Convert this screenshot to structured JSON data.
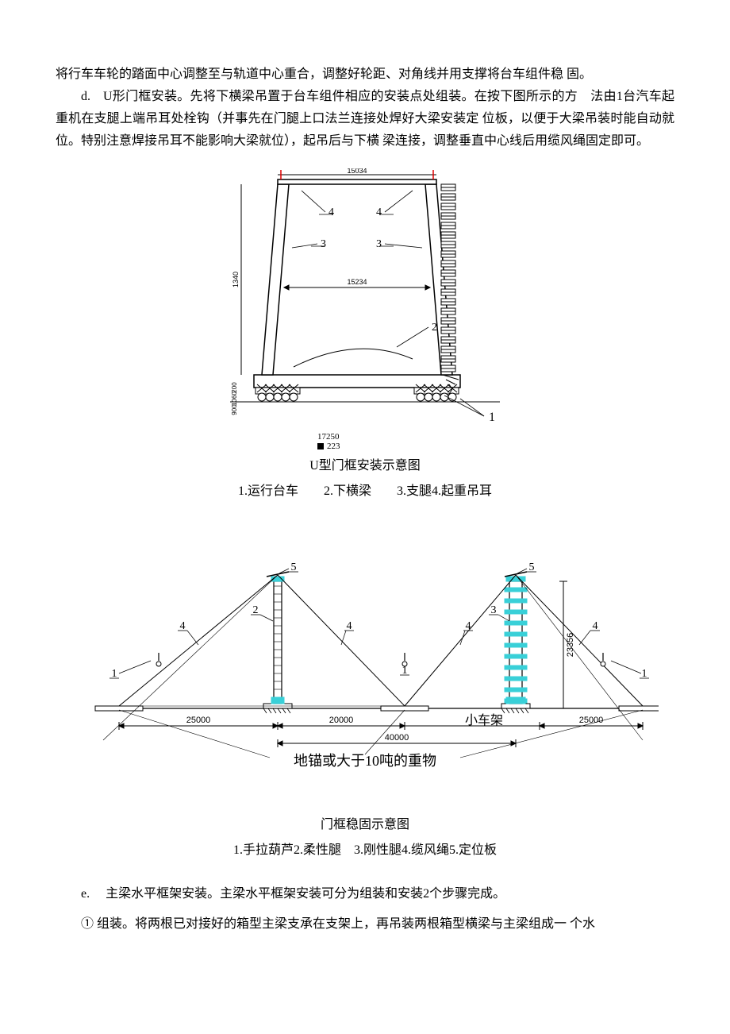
{
  "paragraphs": {
    "p1": "将行车车轮的踏面中心调整至与轨道中心重合，调整好轮距、对角线并用支撑将台车组件稳 固。",
    "p2": "d. U形门框安装。先将下横梁吊置于台车组件相应的安装点处组装。在按下图所示的方 法由1台汽车起重机在支腿上端吊耳处栓钩（并事先在门腿上口法兰连接处焊好大梁安装定 位板，以便于大梁吊装时能自动就位。特别注意焊接吊耳不能影响大梁就位），起吊后与下横 梁连接，调整垂直中心线后用缆风绳固定即可。",
    "p3": "e.  主梁水平框架安装。主梁水平框架安装可分为组装和安装2个步骤完成。",
    "p4": "① 组装。将两根已对接好的箱型主梁支承在支架上，再吊装两根箱型横梁与主梁组成一 个水"
  },
  "figure1": {
    "type": "diagram",
    "caption": "U型门框安装示意图",
    "legend": "1.运行台车  2.下横梁  3.支腿4.起重吊耳",
    "dims": {
      "top_span": "15034",
      "mid_span": "15234",
      "left_height": "1340",
      "base_width": "17250",
      "sub_label": "223",
      "lower_stack": [
        "200",
        "1060",
        "900"
      ]
    },
    "callouts": {
      "c4a": "4",
      "c4b": "4",
      "c3a": "3",
      "c3b": "3",
      "c2": "2",
      "c1": "1"
    },
    "colors": {
      "line": "#000000",
      "bg": "#ffffff"
    },
    "line_width": 1
  },
  "figure2": {
    "type": "diagram",
    "caption": "门框稳固示意图",
    "legend": "1.手拉葫芦2.柔性腿 3.刚性腿4.缆风绳5.定位板",
    "dims": {
      "left_span": "25000",
      "mid_span": "20000",
      "right_span": "25000",
      "total_span": "40000",
      "height": "23356",
      "label_car": "小车架",
      "label_anchor": "地锚或大于10吨的重物"
    },
    "callouts": {
      "c1a": "1",
      "c1b": "1",
      "c1c": "1",
      "c2": "2",
      "c3": "3",
      "c4a": "4",
      "c4b": "4",
      "c4c": "4",
      "c4d": "4",
      "c5a": "5",
      "c5b": "5"
    },
    "colors": {
      "line": "#000000",
      "accent": "#39d0d8",
      "bg": "#ffffff"
    },
    "line_width": 1
  }
}
